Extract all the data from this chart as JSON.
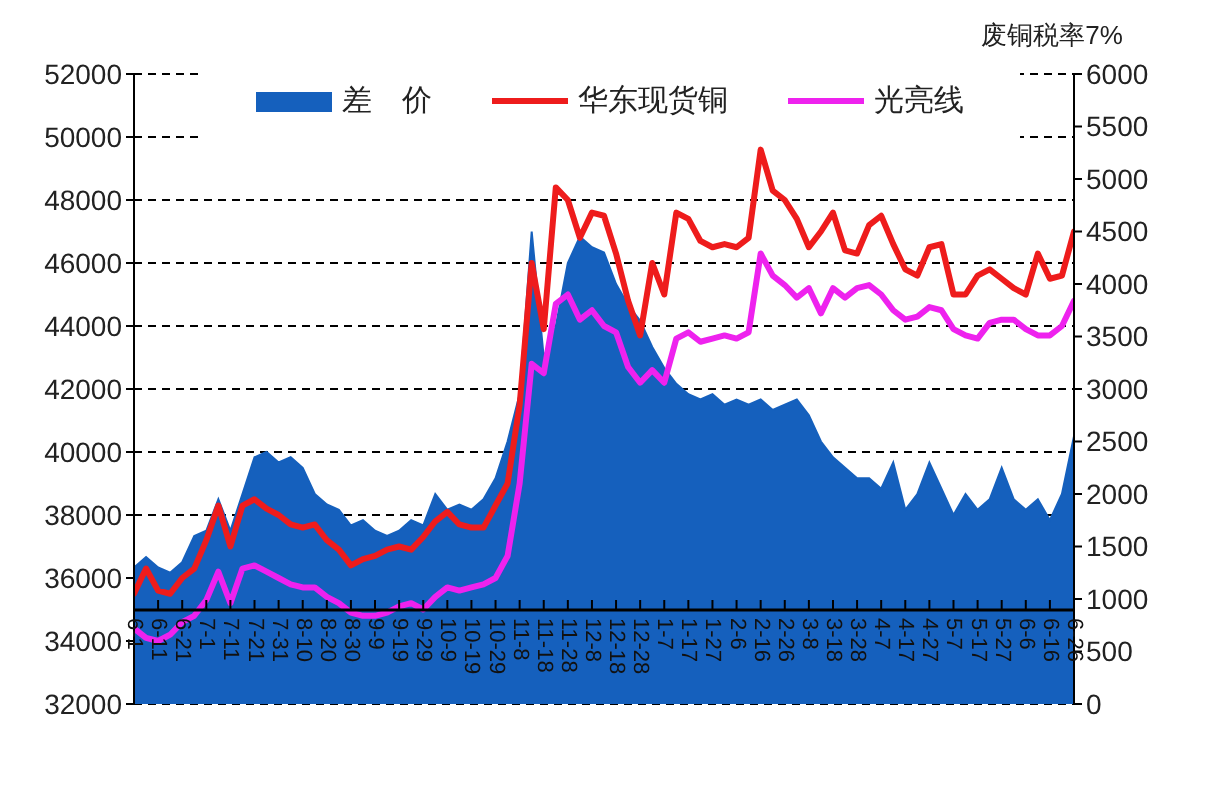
{
  "chart_data": {
    "type": "line",
    "categories": [
      "6-1",
      null,
      "6-11",
      null,
      "6-21",
      null,
      "7-1",
      null,
      "7-11",
      null,
      "7-21",
      null,
      "7-31",
      null,
      "8-10",
      null,
      "8-20",
      null,
      "8-30",
      null,
      "9-9",
      null,
      "9-19",
      null,
      "9-29",
      null,
      "10-9",
      null,
      "10-19",
      null,
      "10-29",
      null,
      "11-8",
      null,
      "11-18",
      null,
      "11-28",
      null,
      "12-8",
      null,
      "12-18",
      null,
      "12-28",
      null,
      "1-7",
      null,
      "1-17",
      null,
      "1-27",
      null,
      "2-6",
      null,
      "2-16",
      null,
      "2-26",
      null,
      "3-8",
      null,
      "3-18",
      null,
      "3-28",
      null,
      "4-7",
      null,
      "4-17",
      null,
      "4-27",
      null,
      "5-7",
      null,
      "5-17",
      null,
      "5-27",
      null,
      "6-6",
      null,
      "6-16",
      null,
      "6-26"
    ],
    "series": [
      {
        "name": "差　价",
        "type": "area",
        "axis": "y2",
        "color": "#1560bd",
        "values": [
          1300,
          1400,
          1300,
          1250,
          1350,
          1600,
          1650,
          1950,
          1650,
          2000,
          2350,
          2400,
          2300,
          2350,
          2250,
          2000,
          1900,
          1850,
          1700,
          1750,
          1650,
          1600,
          1650,
          1750,
          1700,
          2000,
          1850,
          1900,
          1850,
          1950,
          2150,
          2500,
          2950,
          4500,
          3300,
          3600,
          4200,
          4450,
          4350,
          4300,
          4000,
          3800,
          3650,
          3400,
          3200,
          3050,
          2950,
          2900,
          2950,
          2850,
          2900,
          2850,
          2900,
          2800,
          2850,
          2900,
          2750,
          2500,
          2350,
          2250,
          2150,
          2150,
          2050,
          2300,
          1850,
          2000,
          2300,
          2050,
          1800,
          2000,
          1850,
          1950,
          2250,
          1950,
          1850,
          1950,
          1750,
          2000,
          2550
        ]
      },
      {
        "name": "华东现货铜",
        "color": "#ee1c1c",
        "values": [
          35500,
          36300,
          35600,
          35500,
          36000,
          36300,
          37200,
          38300,
          37000,
          38300,
          38500,
          38200,
          38000,
          37700,
          37600,
          37700,
          37200,
          36900,
          36400,
          36600,
          36700,
          36900,
          37000,
          36900,
          37300,
          37800,
          38100,
          37700,
          37600,
          37600,
          38300,
          39000,
          41500,
          46000,
          43900,
          48400,
          48000,
          46800,
          47600,
          47500,
          46300,
          44800,
          43700,
          46000,
          45000,
          47600,
          47400,
          46700,
          46500,
          46600,
          46500,
          46800,
          49600,
          48300,
          48000,
          47400,
          46500,
          47000,
          47600,
          46400,
          46300,
          47200,
          47500,
          46600,
          45800,
          45600,
          46500,
          46600,
          45000,
          45000,
          45600,
          45800,
          45500,
          45200,
          45000,
          46300,
          45500,
          45600,
          47000
        ]
      },
      {
        "name": "光亮线",
        "color": "#ee22ee",
        "values": [
          34400,
          34100,
          34000,
          34200,
          34600,
          34800,
          35300,
          36200,
          35200,
          36300,
          36400,
          36200,
          36000,
          35800,
          35700,
          35700,
          35400,
          35200,
          34900,
          34800,
          34800,
          34900,
          35100,
          35200,
          35000,
          35400,
          35700,
          35600,
          35700,
          35800,
          36000,
          36700,
          39000,
          42800,
          42500,
          44700,
          45000,
          44200,
          44500,
          44000,
          43800,
          42700,
          42200,
          42600,
          42200,
          43600,
          43800,
          43500,
          43600,
          43700,
          43600,
          43800,
          46300,
          45600,
          45300,
          44900,
          45200,
          44400,
          45200,
          44900,
          45200,
          45300,
          45000,
          44500,
          44200,
          44300,
          44600,
          44500,
          43900,
          43700,
          43600,
          44100,
          44200,
          44200,
          43900,
          43700,
          43700,
          44000,
          44800
        ]
      }
    ],
    "y2label": "废铜税率7%",
    "ylim": [
      32000,
      52000
    ],
    "yticks": [
      32000,
      34000,
      36000,
      38000,
      40000,
      42000,
      44000,
      46000,
      48000,
      50000,
      52000
    ],
    "y2lim": [
      0,
      6000
    ],
    "y2ticks": [
      0,
      500,
      1000,
      1500,
      2000,
      2500,
      3000,
      3500,
      4000,
      4500,
      5000,
      5500,
      6000
    ],
    "grid": "y",
    "legend": "top"
  }
}
